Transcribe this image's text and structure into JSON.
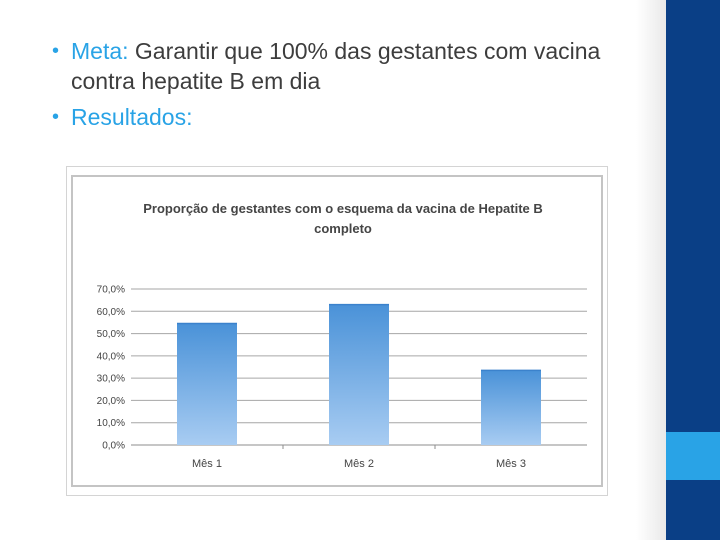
{
  "slide": {
    "bullets": [
      {
        "keyword": "Meta:",
        "text": " Garantir que 100% das gestantes com vacina contra hepatite B em dia"
      },
      {
        "keyword": "Resultados:",
        "text": ""
      }
    ]
  },
  "colors": {
    "accent": "#29a3e6",
    "sidebar": "#0a3f86",
    "bar_top": "#4a92d8",
    "bar_bottom": "#a8ccf2"
  },
  "chart_data": {
    "type": "bar",
    "title": "Proporção de gestantes com o esquema da vacina de Hepatite B completo",
    "categories": [
      "Mês 1",
      "Mês 2",
      "Mês 3"
    ],
    "values": [
      0.545,
      0.63,
      0.335
    ],
    "ylim": [
      0,
      0.7
    ],
    "yticks": [
      "0,0%",
      "10,0%",
      "20,0%",
      "30,0%",
      "40,0%",
      "50,0%",
      "60,0%",
      "70,0%"
    ],
    "xlabel": "",
    "ylabel": "",
    "grid": true,
    "legend": "none"
  }
}
